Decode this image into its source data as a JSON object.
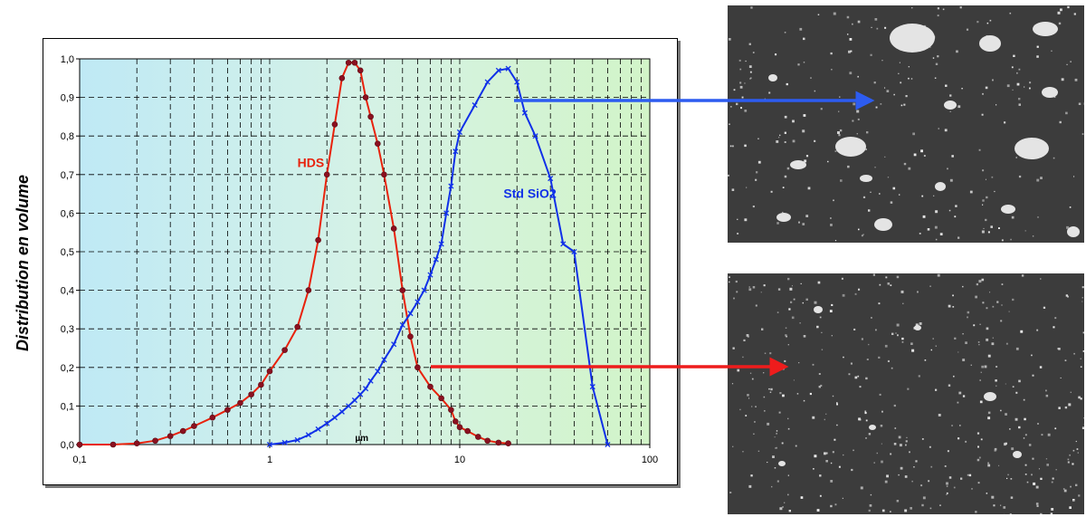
{
  "chart_data": {
    "type": "line",
    "xscale": "log",
    "xlim": [
      0.1,
      100
    ],
    "ylim": [
      0,
      1.0
    ],
    "x_ticks": [
      "0,1",
      "1",
      "10",
      "100"
    ],
    "y_ticks": [
      "0,0",
      "0,1",
      "0,2",
      "0,3",
      "0,4",
      "0,5",
      "0,6",
      "0,7",
      "0,8",
      "0,9",
      "1,0"
    ],
    "xlabel": "µm",
    "ylabel": "Distribution en volume",
    "grid": true,
    "series": [
      {
        "name": "HDS",
        "color": "#e8220c",
        "marker": "circle",
        "x": [
          0.1,
          0.15,
          0.2,
          0.25,
          0.3,
          0.35,
          0.4,
          0.5,
          0.6,
          0.7,
          0.8,
          0.9,
          1.0,
          1.2,
          1.4,
          1.6,
          1.8,
          2.0,
          2.2,
          2.4,
          2.6,
          2.8,
          3.0,
          3.2,
          3.4,
          3.7,
          4.0,
          4.5,
          5.0,
          5.5,
          6.0,
          7.0,
          8.0,
          9.0,
          9.5,
          10.0,
          11.0,
          12.5,
          14.0,
          16.0,
          18.0
        ],
        "y": [
          0.0,
          0.0,
          0.003,
          0.01,
          0.022,
          0.035,
          0.048,
          0.07,
          0.09,
          0.108,
          0.13,
          0.155,
          0.19,
          0.245,
          0.305,
          0.4,
          0.53,
          0.7,
          0.83,
          0.95,
          0.99,
          0.99,
          0.97,
          0.9,
          0.85,
          0.78,
          0.7,
          0.56,
          0.4,
          0.28,
          0.2,
          0.15,
          0.12,
          0.09,
          0.06,
          0.045,
          0.035,
          0.02,
          0.01,
          0.005,
          0.003
        ]
      },
      {
        "name": "Std SiO2",
        "color": "#1030e8",
        "marker": "x",
        "x": [
          1.0,
          1.2,
          1.4,
          1.6,
          1.8,
          2.0,
          2.2,
          2.4,
          2.6,
          2.8,
          3.0,
          3.2,
          3.4,
          3.7,
          4.0,
          4.5,
          5.0,
          5.5,
          6.0,
          6.5,
          7.0,
          7.5,
          8.0,
          8.5,
          9.0,
          9.5,
          10.0,
          12.0,
          14.0,
          16.0,
          18.0,
          20.0,
          22.0,
          25.0,
          30.0,
          35.0,
          40.0,
          50.0,
          60.0
        ],
        "y": [
          0.0,
          0.005,
          0.012,
          0.025,
          0.04,
          0.055,
          0.07,
          0.085,
          0.1,
          0.115,
          0.13,
          0.145,
          0.165,
          0.19,
          0.22,
          0.26,
          0.31,
          0.34,
          0.37,
          0.4,
          0.44,
          0.48,
          0.52,
          0.6,
          0.67,
          0.76,
          0.81,
          0.88,
          0.94,
          0.97,
          0.975,
          0.94,
          0.86,
          0.8,
          0.69,
          0.52,
          0.5,
          0.15,
          0.0
        ]
      }
    ],
    "labels": {
      "hds": "HDS",
      "std": "Std SiO2",
      "unit": "µm"
    }
  },
  "images": {
    "top": "micrograph-std-sio2",
    "bottom": "micrograph-hds"
  }
}
